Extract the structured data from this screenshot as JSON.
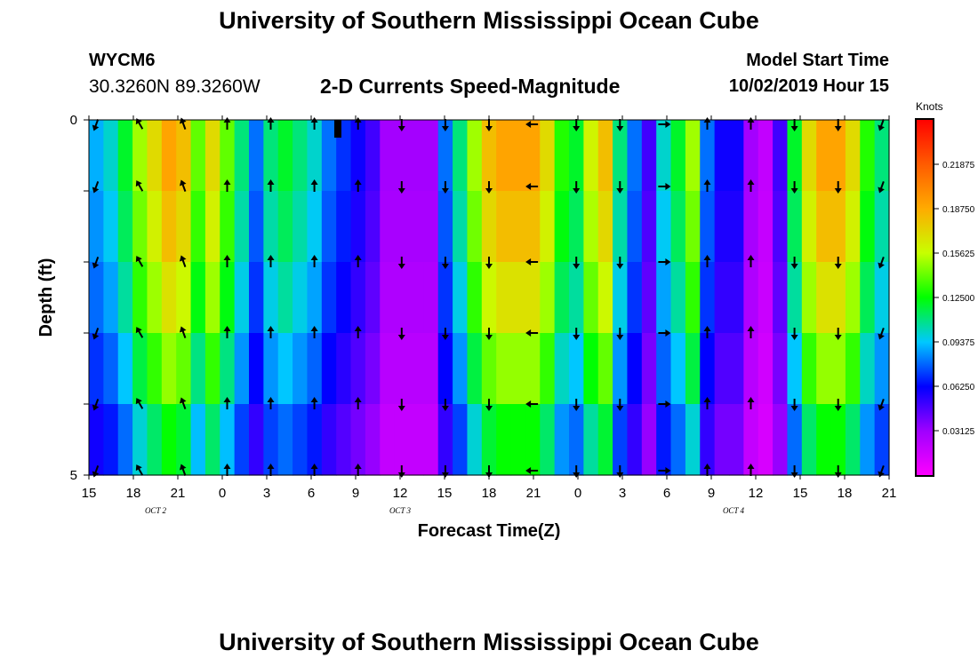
{
  "header": {
    "title": "University of Southern Mississippi Ocean Cube",
    "station_id": "WYCM6",
    "coordinates": "30.3260N 89.3260W",
    "subtitle": "2-D Currents Speed-Magnitude",
    "model_start_label": "Model Start Time",
    "model_start_value": "10/02/2019 Hour 15"
  },
  "footer": {
    "title": "University of Southern Mississippi Ocean Cube"
  },
  "chart_data": {
    "type": "heatmap",
    "title": "2-D Currents Speed-Magnitude",
    "xlabel": "Forecast Time(Z)",
    "ylabel": "Depth (ft)",
    "ylim": [
      0,
      5
    ],
    "x_tick_labels": [
      "15",
      "18",
      "21",
      "0",
      "3",
      "6",
      "9",
      "12",
      "15",
      "18",
      "21",
      "0",
      "3",
      "6",
      "9",
      "12",
      "15",
      "18",
      "21"
    ],
    "y_tick_labels": [
      "0",
      "5"
    ],
    "day_labels": [
      {
        "label": "OCT 2",
        "tick": 1.5
      },
      {
        "label": "OCT 3",
        "tick": 7
      },
      {
        "label": "OCT 4",
        "tick": 14.5
      }
    ],
    "colorbar": {
      "title": "Knots",
      "range": [
        0,
        0.25
      ],
      "tick_labels": [
        "0.21875",
        "0.18750",
        "0.15625",
        "0.12500",
        "0.09375",
        "0.06250",
        "0.03125"
      ],
      "tick_values": [
        0.21875,
        0.1875,
        0.15625,
        0.125,
        0.09375,
        0.0625,
        0.03125
      ]
    },
    "rows": 5,
    "columns": 55,
    "speed_profile": [
      0.09,
      0.1,
      0.12,
      0.15,
      0.17,
      0.19,
      0.18,
      0.14,
      0.17,
      0.14,
      0.11,
      0.08,
      0.11,
      0.12,
      0.11,
      0.1,
      0.08,
      0.07,
      0.06,
      0.05,
      0.03,
      0.03,
      0.03,
      0.03,
      0.08,
      0.11,
      0.15,
      0.18,
      0.19,
      0.19,
      0.19,
      0.17,
      0.13,
      0.12,
      0.16,
      0.18,
      0.11,
      0.08,
      0.05,
      0.1,
      0.12,
      0.15,
      0.08,
      0.06,
      0.06,
      0.03,
      0.02,
      0.05,
      0.12,
      0.17,
      0.19,
      0.19,
      0.17,
      0.13,
      0.11
    ],
    "depth_factors": [
      1.0,
      0.95,
      0.88,
      0.78,
      0.66
    ],
    "arrow_columns": [
      0,
      3,
      6,
      9,
      12,
      15,
      18,
      21,
      24,
      27,
      30,
      33,
      36,
      39,
      42,
      45,
      48,
      51,
      54
    ],
    "arrow_directions_deg": [
      200,
      330,
      340,
      0,
      0,
      0,
      0,
      180,
      180,
      180,
      270,
      180,
      180,
      90,
      0,
      0,
      180,
      180,
      200
    ],
    "no_data_marker": {
      "x_tick": 5.6,
      "depth_from": 0,
      "depth_to": 0.25
    }
  }
}
